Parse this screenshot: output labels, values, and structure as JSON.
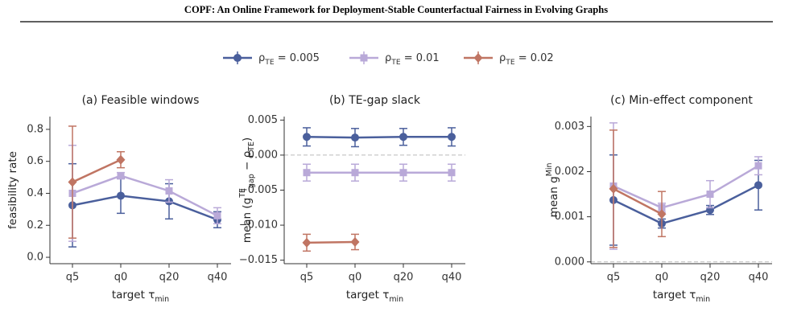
{
  "header": {
    "title": "COPF: An Online Framework for Deployment-Stable Counterfactual Fairness in Evolving Graphs"
  },
  "legend": {
    "entries": [
      {
        "color": "#4a5f9c",
        "marker": "circle",
        "parts": [
          {
            "text": "ρ"
          },
          {
            "text": "TE",
            "shift": "sub"
          },
          {
            "text": " = 0.005"
          }
        ]
      },
      {
        "color": "#b9a9d8",
        "marker": "square",
        "parts": [
          {
            "text": "ρ"
          },
          {
            "text": "TE",
            "shift": "sub"
          },
          {
            "text": " = 0.01"
          }
        ]
      },
      {
        "color": "#c07563",
        "marker": "diamond",
        "parts": [
          {
            "text": "ρ"
          },
          {
            "text": "TE",
            "shift": "sub"
          },
          {
            "text": " = 0.02"
          }
        ]
      }
    ]
  },
  "chart_data": [
    {
      "type": "line",
      "title": "(a) Feasible windows",
      "ylabel": [
        {
          "text": "feasibility rate"
        }
      ],
      "xlabel": [
        {
          "text": "target τ"
        },
        {
          "text": "min",
          "shift": "sub"
        }
      ],
      "categories": [
        "q5",
        "q0",
        "q20",
        "q40"
      ],
      "ylim": [
        -0.04,
        0.88
      ],
      "yticks": [
        {
          "value": 0,
          "label": "0.0"
        },
        0.2,
        0.4,
        0.6,
        0.8
      ],
      "series": [
        {
          "color": "#4a5f9c",
          "marker": "circle",
          "values": [
            0.325,
            0.385,
            0.35,
            0.235
          ],
          "errors": [
            0.26,
            0.11,
            0.11,
            0.05
          ]
        },
        {
          "color": "#b9a9d8",
          "marker": "square",
          "values": [
            0.4,
            0.51,
            0.415,
            0.26
          ],
          "errors": [
            0.3,
            0.02,
            0.07,
            0.05
          ]
        },
        {
          "color": "#c07563",
          "marker": "diamond",
          "values": [
            0.47,
            0.61,
            null,
            null
          ],
          "errors": [
            0.35,
            0.05,
            null,
            null
          ]
        }
      ]
    },
    {
      "type": "line",
      "title": "(b) TE-gap slack",
      "ylabel": [
        {
          "text": "mean (g"
        },
        {
          "text": "TE",
          "shift": "super"
        },
        {
          "text": "gap",
          "shift": "sub"
        },
        {
          "text": " − ρ"
        },
        {
          "text": "TE",
          "shift": "sub"
        },
        {
          "text": ")"
        }
      ],
      "xlabel": [
        {
          "text": "target τ"
        },
        {
          "text": "min",
          "shift": "sub"
        }
      ],
      "categories": [
        "q5",
        "q0",
        "q20",
        "q40"
      ],
      "ylim": [
        -0.0155,
        0.0055
      ],
      "yticks": [
        {
          "value": -0.015,
          "label": "−0.015"
        },
        {
          "value": -0.01,
          "label": "−0.010"
        },
        {
          "value": -0.005,
          "label": "−0.005"
        },
        {
          "value": 0,
          "label": "0.000"
        },
        0.005
      ],
      "hline": 0,
      "series": [
        {
          "color": "#4a5f9c",
          "marker": "circle",
          "values": [
            0.0026,
            0.0025,
            0.0026,
            0.0026
          ],
          "errors": [
            0.0013,
            0.0013,
            0.0012,
            0.0013
          ]
        },
        {
          "color": "#b9a9d8",
          "marker": "square",
          "values": [
            -0.0025,
            -0.0025,
            -0.0025,
            -0.0025
          ],
          "errors": [
            0.0012,
            0.0012,
            0.0012,
            0.0012
          ]
        },
        {
          "color": "#c07563",
          "marker": "diamond",
          "values": [
            -0.0125,
            -0.0124,
            null,
            null
          ],
          "errors": [
            0.0012,
            0.0011,
            null,
            null
          ]
        }
      ]
    },
    {
      "type": "line",
      "title": "(c) Min-effect component",
      "ylabel": [
        {
          "text": "mean g"
        },
        {
          "text": "Min",
          "shift": "super"
        }
      ],
      "xlabel": [
        {
          "text": "target τ"
        },
        {
          "text": "min",
          "shift": "sub"
        }
      ],
      "categories": [
        "q5",
        "q0",
        "q20",
        "q40"
      ],
      "ylim": [
        -4e-05,
        0.00322
      ],
      "yticks": [
        {
          "value": 0,
          "label": "0.000"
        },
        0.001,
        0.002,
        0.003
      ],
      "hline": 0,
      "series": [
        {
          "color": "#4a5f9c",
          "marker": "circle",
          "values": [
            0.00137,
            0.00085,
            0.00115,
            0.0017
          ],
          "errors": [
            0.001,
            0.0001,
            0.0001,
            0.00055
          ]
        },
        {
          "color": "#b9a9d8",
          "marker": "square",
          "values": [
            0.00168,
            0.0012,
            0.0015,
            0.00213
          ],
          "errors": [
            0.0014,
            0.0001,
            0.0003,
            0.0002
          ]
        },
        {
          "color": "#c07563",
          "marker": "diamond",
          "values": [
            0.00162,
            0.00106,
            null,
            null
          ],
          "errors": [
            0.0013,
            0.0005,
            null,
            null
          ]
        }
      ]
    }
  ]
}
